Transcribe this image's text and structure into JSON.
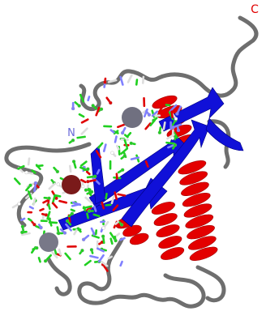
{
  "labels": {
    "c_terminus": "C",
    "n_terminus": "N"
  }
}
